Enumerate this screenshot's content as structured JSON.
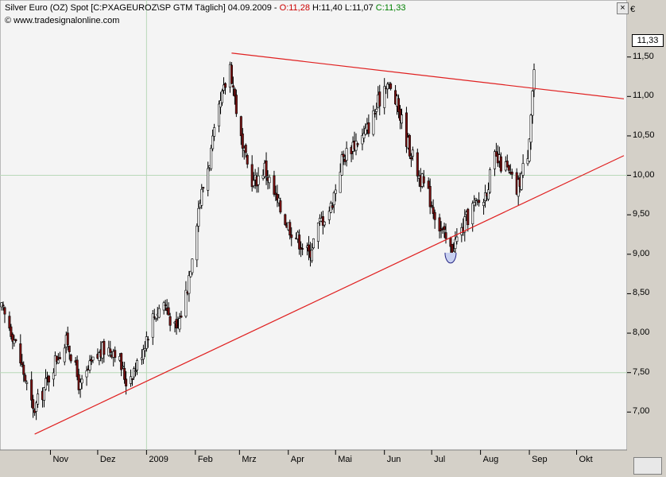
{
  "header": {
    "instrument": "Silver Euro (OZ) Spot [C:PXAGEUROZ\\SP GTM  Täglich]",
    "date": "04.09.2009",
    "dash": "-",
    "open": "O:11,28",
    "high": "H:11,40",
    "low": "L:11,07",
    "close": "C:11,33",
    "source": "© www.tradesignalonline.com",
    "close_window": "×"
  },
  "colors": {
    "up_candle": "#ffffff",
    "down_candle": "#7a1010",
    "trendline": "#e02020",
    "grid": "#b8d8b8",
    "plot_bg": "#f4f4f4",
    "open_text": "#cc0000",
    "close_text": "#008000"
  },
  "chart_data": {
    "type": "candlestick",
    "currency": "€",
    "last_price": "11,33",
    "y_ticks": [
      "11,50",
      "11,00",
      "10,50",
      "10,00",
      "9,50",
      "9,00",
      "8,50",
      "8,00",
      "7,50",
      "7,00"
    ],
    "y_tick_values": [
      11.5,
      11.0,
      10.5,
      10.0,
      9.5,
      9.0,
      8.5,
      8.0,
      7.5,
      7.0
    ],
    "ylim": [
      6.58,
      11.92
    ],
    "x_ticks": [
      "Nov",
      "Dez",
      "2009",
      "Feb",
      "Mrz",
      "Apr",
      "Mai",
      "Jun",
      "Jul",
      "Aug",
      "Sep",
      "Okt"
    ],
    "x_tick_dates": [
      "2008-11-01",
      "2008-12-01",
      "2009-01-01",
      "2009-02-01",
      "2009-03-01",
      "2009-04-01",
      "2009-05-01",
      "2009-06-01",
      "2009-07-01",
      "2009-08-01",
      "2009-09-01",
      "2009-10-01"
    ],
    "grid_h": [
      10.0,
      7.5
    ],
    "grid_v_date": "2009-01-01",
    "path_dates": [
      "2008-10-01",
      "2008-10-08",
      "2008-10-15",
      "2008-10-21",
      "2008-10-28",
      "2008-11-05",
      "2008-11-12",
      "2008-11-20",
      "2008-11-27",
      "2008-12-05",
      "2008-12-12",
      "2008-12-19",
      "2008-12-26",
      "2009-01-05",
      "2009-01-12",
      "2009-01-20",
      "2009-01-27",
      "2009-02-03",
      "2009-02-10",
      "2009-02-17",
      "2009-02-23",
      "2009-03-03",
      "2009-03-10",
      "2009-03-17",
      "2009-03-24",
      "2009-03-31",
      "2009-04-07",
      "2009-04-14",
      "2009-04-21",
      "2009-04-28",
      "2009-05-05",
      "2009-05-12",
      "2009-05-19",
      "2009-05-26",
      "2009-06-02",
      "2009-06-09",
      "2009-06-16",
      "2009-06-23",
      "2009-06-30",
      "2009-07-07",
      "2009-07-13",
      "2009-07-20",
      "2009-07-27",
      "2009-08-03",
      "2009-08-10",
      "2009-08-17",
      "2009-08-24",
      "2009-08-31",
      "2009-09-04"
    ],
    "path_values": [
      8.3,
      8.0,
      7.5,
      7.0,
      7.3,
      7.7,
      7.9,
      7.3,
      7.6,
      7.8,
      7.8,
      7.4,
      7.6,
      8.2,
      8.4,
      8.0,
      8.6,
      9.6,
      10.2,
      10.9,
      11.4,
      10.3,
      9.9,
      10.1,
      9.7,
      9.4,
      9.2,
      9.0,
      9.4,
      9.6,
      10.2,
      10.4,
      10.5,
      10.8,
      11.2,
      10.9,
      10.4,
      10.0,
      9.7,
      9.3,
      9.05,
      9.3,
      9.6,
      9.7,
      10.2,
      10.1,
      9.8,
      10.3,
      11.33
    ],
    "trendlines": [
      {
        "from_date": "2008-10-22",
        "from_value": 6.72,
        "to_date": "2009-10-31",
        "to_value": 10.25
      },
      {
        "from_date": "2009-02-24",
        "from_value": 11.55,
        "to_date": "2009-10-31",
        "to_value": 10.97
      }
    ],
    "highlight": {
      "date": "2009-07-13",
      "value": 9.02
    }
  }
}
